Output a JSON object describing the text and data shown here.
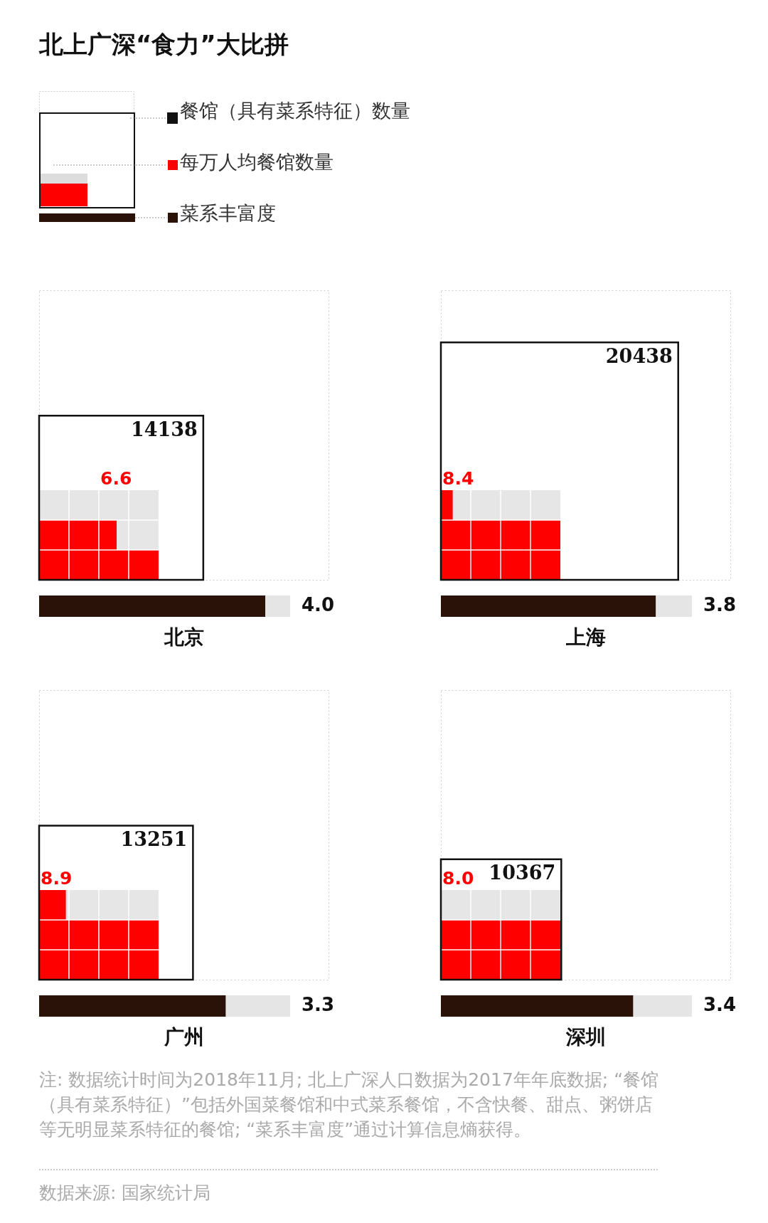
{
  "chart_data": {
    "type": "other",
    "title": "北上广深“食力”大比拼",
    "categories": [
      "北京",
      "上海",
      "广州",
      "深圳"
    ],
    "series": [
      {
        "name": "餐馆（具有菜系特征）数量",
        "color": "#111111",
        "values": [
          14138,
          20438,
          13251,
          10367
        ]
      },
      {
        "name": "每万人均餐馆数量",
        "color": "#ff0000",
        "values": [
          6.6,
          8.4,
          8.9,
          8.0
        ],
        "value_labels": [
          "6.6",
          "8.4",
          "8.9",
          "8.0"
        ]
      },
      {
        "name": "菜系丰富度",
        "color": "#2a1209",
        "values": [
          4.0,
          3.8,
          3.3,
          3.4
        ],
        "value_labels": [
          "4.0",
          "3.8",
          "3.3",
          "3.4"
        ]
      }
    ],
    "data_labels": true,
    "annotations": [
      "注: 数据统计时间为2018年11月; 北上广深人口数据为2017年年底数据; “餐馆（具有菜系特征）”包括外国菜餐馆和中式菜系餐馆，不含快餐、甜点、粥饼店等无明显菜系特征的餐馆; “菜系丰富度”通过计算信息熵获得。",
      "数据来源: 国家统计局"
    ]
  }
}
